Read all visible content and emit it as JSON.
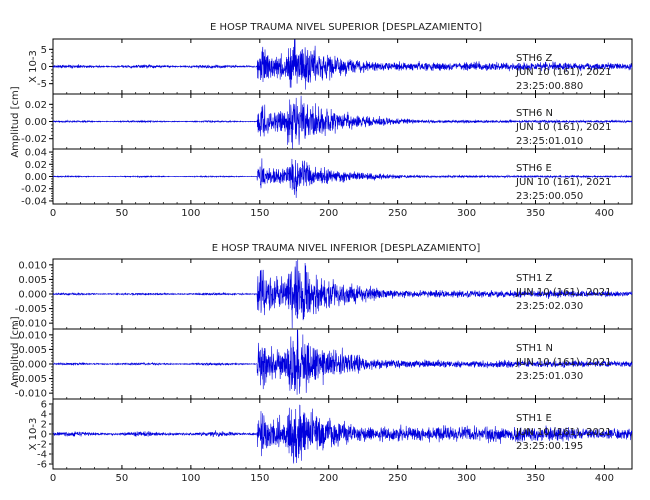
{
  "colors": {
    "trace": "#0000dd",
    "axis": "#000000",
    "text": "#222222"
  },
  "chart_data": [
    {
      "type": "line",
      "title": "E HOSP TRAUMA NIVEL SUPERIOR [DESPLAZAMIENTO]",
      "ylabel": "Amplitud [cm]",
      "xlim": [
        0,
        420
      ],
      "x_ticks": [
        "0",
        "50",
        "100",
        "150",
        "200",
        "250",
        "300",
        "350",
        "400"
      ],
      "x_tick_values": [
        0,
        50,
        100,
        150,
        200,
        250,
        300,
        350,
        400
      ],
      "traces": [
        {
          "station": "STH6",
          "component": "Z",
          "date": "JUN 10 (161), 2021",
          "time": "23:25:00.880",
          "unit_label": "X 10-3",
          "ylim": [
            -8,
            8
          ],
          "y_ticks": [
            "5",
            "0",
            "-5"
          ],
          "y_tick_values": [
            5,
            0,
            -5
          ],
          "peak": 7.5,
          "pre_level": 0.5,
          "post_level": 1.2,
          "seed": 11
        },
        {
          "station": "STH6",
          "component": "N",
          "date": "JUN 10 (161), 2021",
          "time": "23:25:01.010",
          "unit_label": "",
          "ylim": [
            -0.032,
            0.032
          ],
          "y_ticks": [
            "0.02",
            "0.00",
            "-0.02"
          ],
          "y_tick_values": [
            0.02,
            0,
            -0.02
          ],
          "peak": 0.03,
          "pre_level": 0.001,
          "post_level": 0.0015,
          "seed": 23
        },
        {
          "station": "STH6",
          "component": "E",
          "date": "JUN 10 (161), 2021",
          "time": "23:25:00.050",
          "unit_label": "",
          "ylim": [
            -0.045,
            0.045
          ],
          "y_ticks": [
            "0.04",
            "0.02",
            "0.00",
            "-0.02",
            "-0.04"
          ],
          "y_tick_values": [
            0.04,
            0.02,
            0,
            -0.02,
            -0.04
          ],
          "peak": 0.028,
          "pre_level": 0.001,
          "post_level": 0.0015,
          "seed": 37
        }
      ]
    },
    {
      "type": "line",
      "title": "E HOSP TRAUMA NIVEL INFERIOR [DESPLAZAMIENTO]",
      "ylabel": "Amplitud [cm]",
      "xlim": [
        0,
        420
      ],
      "x_ticks": [
        "0",
        "50",
        "100",
        "150",
        "200",
        "250",
        "300",
        "350",
        "400"
      ],
      "x_tick_values": [
        0,
        50,
        100,
        150,
        200,
        250,
        300,
        350,
        400
      ],
      "traces": [
        {
          "station": "STH1",
          "component": "Z",
          "date": "JUN 10 (161), 2021",
          "time": "23:25:02.030",
          "unit_label": "",
          "ylim": [
            -0.012,
            0.012
          ],
          "y_ticks": [
            "0.010",
            "0.005",
            "0.000",
            "-0.005",
            "-0.010"
          ],
          "y_tick_values": [
            0.01,
            0.005,
            0,
            -0.005,
            -0.01
          ],
          "peak": 0.011,
          "pre_level": 0.0004,
          "post_level": 0.0012,
          "seed": 53
        },
        {
          "station": "STH1",
          "component": "N",
          "date": "JUN 10 (161), 2021",
          "time": "23:25:01.030",
          "unit_label": "",
          "ylim": [
            -0.012,
            0.012
          ],
          "y_ticks": [
            "0.010",
            "0.005",
            "0.000",
            "-0.005",
            "-0.010"
          ],
          "y_tick_values": [
            0.01,
            0.005,
            0,
            -0.005,
            -0.01
          ],
          "peak": 0.011,
          "pre_level": 0.0004,
          "post_level": 0.0012,
          "seed": 71
        },
        {
          "station": "STH1",
          "component": "E",
          "date": "JUN 10 (161), 2021",
          "time": "23:25:00.195",
          "unit_label": "X 10-3",
          "ylim": [
            -7,
            7
          ],
          "y_ticks": [
            "6",
            "4",
            "2",
            "0",
            "-2",
            "-4",
            "-6"
          ],
          "y_tick_values": [
            6,
            4,
            2,
            0,
            -2,
            -4,
            -6
          ],
          "peak": 6.5,
          "pre_level": 0.5,
          "post_level": 1.4,
          "seed": 89
        }
      ]
    }
  ]
}
